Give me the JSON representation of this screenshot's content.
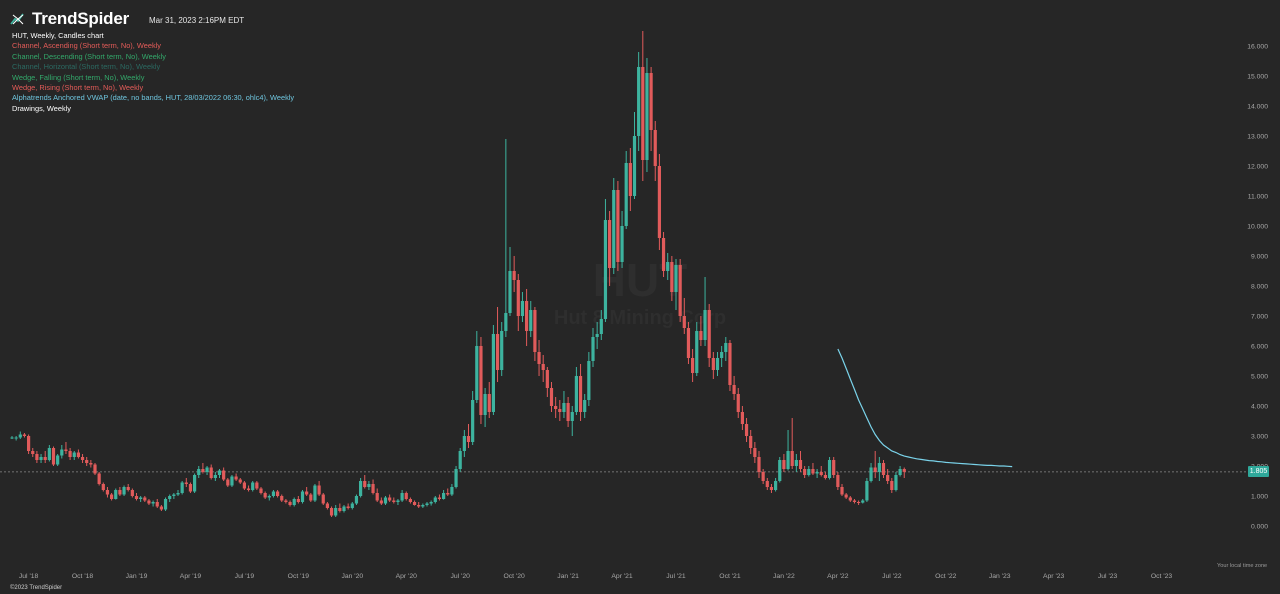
{
  "app": {
    "brand": "TrendSpider",
    "timestamp": "Mar 31, 2023 2:16PM EDT",
    "footer": "©2023 TrendSpider",
    "timezone_note": "Your local time zone"
  },
  "chart_title": "HUT, Weekly, Candles chart",
  "watermark": {
    "symbol": "HUT",
    "name": "Hut 8 Mining Corp"
  },
  "indicators": [
    {
      "label": "Channel, Ascending (Short term, No), Weekly",
      "color": "#e55c59"
    },
    {
      "label": "Channel, Descending (Short term, No), Weekly",
      "color": "#33a96b"
    },
    {
      "label": "Channel, Horizontal (Short term, No), Weekly",
      "color": "#2b6a62"
    },
    {
      "label": "Wedge, Falling (Short term, No), Weekly",
      "color": "#33a96b"
    },
    {
      "label": "Wedge, Rising (Short term, No), Weekly",
      "color": "#e55c59"
    },
    {
      "label": "Alphatrends Anchored VWAP (date, no bands, HUT, 28/03/2022 06:30, ohlc4), Weekly",
      "color": "#6fc6df"
    },
    {
      "label": "Drawings, Weekly",
      "color": "#ffffff"
    }
  ],
  "current_price": "1.805",
  "colors": {
    "up": "#3db39f",
    "down": "#e15b5b",
    "vwap": "#7ad3ea",
    "background": "#262626"
  },
  "chart_data": {
    "type": "candlestick",
    "symbol": "HUT",
    "timeframe": "Weekly",
    "y_axis": {
      "ticks": [
        "0.000",
        "1.000",
        "2.000",
        "3.000",
        "4.000",
        "5.000",
        "6.000",
        "7.000",
        "8.000",
        "9.000",
        "10.000",
        "11.000",
        "12.000",
        "13.000",
        "14.000",
        "15.000",
        "16.000"
      ],
      "min": 0,
      "max": 16
    },
    "x_axis": {
      "ticks": [
        "Jul '18",
        "Oct '18",
        "Jan '19",
        "Apr '19",
        "Jul '19",
        "Oct '19",
        "Jan '20",
        "Apr '20",
        "Jul '20",
        "Oct '20",
        "Jan '21",
        "Apr '21",
        "Jul '21",
        "Oct '21",
        "Jan '22",
        "Apr '22",
        "Jul '22",
        "Oct '22",
        "Jan '23",
        "Apr '23",
        "Jul '23",
        "Oct '23"
      ]
    },
    "start_date": "2018-06-04",
    "candles_ohlc": [
      [
        2.95,
        3.0,
        2.9,
        2.95
      ],
      [
        2.95,
        3.0,
        2.85,
        2.95
      ],
      [
        2.95,
        3.15,
        2.9,
        3.05
      ],
      [
        3.05,
        3.1,
        2.95,
        3.0
      ],
      [
        3.0,
        3.05,
        2.4,
        2.5
      ],
      [
        2.5,
        2.6,
        2.3,
        2.4
      ],
      [
        2.4,
        2.5,
        2.1,
        2.2
      ],
      [
        2.2,
        2.4,
        2.1,
        2.3
      ],
      [
        2.3,
        2.5,
        2.1,
        2.2
      ],
      [
        2.2,
        2.7,
        2.15,
        2.6
      ],
      [
        2.6,
        2.65,
        2.0,
        2.05
      ],
      [
        2.05,
        2.4,
        2.0,
        2.35
      ],
      [
        2.35,
        2.7,
        2.25,
        2.55
      ],
      [
        2.55,
        2.8,
        2.4,
        2.5
      ],
      [
        2.5,
        2.6,
        2.2,
        2.3
      ],
      [
        2.3,
        2.5,
        2.2,
        2.45
      ],
      [
        2.45,
        2.55,
        2.25,
        2.3
      ],
      [
        2.3,
        2.4,
        2.1,
        2.2
      ],
      [
        2.2,
        2.3,
        2.0,
        2.1
      ],
      [
        2.1,
        2.2,
        1.95,
        2.05
      ],
      [
        2.05,
        2.1,
        1.7,
        1.75
      ],
      [
        1.75,
        1.8,
        1.35,
        1.4
      ],
      [
        1.4,
        1.45,
        1.15,
        1.2
      ],
      [
        1.2,
        1.3,
        0.95,
        1.05
      ],
      [
        1.05,
        1.1,
        0.85,
        0.9
      ],
      [
        0.9,
        1.25,
        0.88,
        1.2
      ],
      [
        1.2,
        1.3,
        1.0,
        1.05
      ],
      [
        1.05,
        1.35,
        1.0,
        1.3
      ],
      [
        1.3,
        1.4,
        1.15,
        1.2
      ],
      [
        1.2,
        1.25,
        0.95,
        1.0
      ],
      [
        1.0,
        1.1,
        0.85,
        0.9
      ],
      [
        0.9,
        1.0,
        0.8,
        0.95
      ],
      [
        0.95,
        1.0,
        0.8,
        0.85
      ],
      [
        0.85,
        0.9,
        0.7,
        0.75
      ],
      [
        0.75,
        0.85,
        0.65,
        0.8
      ],
      [
        0.8,
        0.9,
        0.6,
        0.65
      ],
      [
        0.65,
        0.7,
        0.5,
        0.55
      ],
      [
        0.55,
        0.95,
        0.5,
        0.9
      ],
      [
        0.9,
        1.05,
        0.8,
        1.0
      ],
      [
        1.0,
        1.1,
        0.9,
        1.05
      ],
      [
        1.05,
        1.2,
        1.0,
        1.1
      ],
      [
        1.1,
        1.5,
        1.05,
        1.45
      ],
      [
        1.45,
        1.6,
        1.3,
        1.4
      ],
      [
        1.4,
        1.45,
        1.1,
        1.15
      ],
      [
        1.15,
        1.75,
        1.1,
        1.7
      ],
      [
        1.7,
        2.0,
        1.6,
        1.9
      ],
      [
        1.9,
        2.1,
        1.75,
        1.8
      ],
      [
        1.8,
        2.0,
        1.7,
        1.95
      ],
      [
        1.95,
        2.05,
        1.55,
        1.6
      ],
      [
        1.6,
        1.8,
        1.5,
        1.7
      ],
      [
        1.7,
        1.9,
        1.6,
        1.85
      ],
      [
        1.85,
        1.95,
        1.5,
        1.55
      ],
      [
        1.55,
        1.6,
        1.3,
        1.35
      ],
      [
        1.35,
        1.7,
        1.3,
        1.65
      ],
      [
        1.65,
        1.75,
        1.5,
        1.55
      ],
      [
        1.55,
        1.6,
        1.4,
        1.45
      ],
      [
        1.45,
        1.5,
        1.2,
        1.25
      ],
      [
        1.25,
        1.35,
        1.15,
        1.2
      ],
      [
        1.2,
        1.5,
        1.15,
        1.45
      ],
      [
        1.45,
        1.5,
        1.2,
        1.25
      ],
      [
        1.25,
        1.3,
        1.05,
        1.1
      ],
      [
        1.1,
        1.15,
        0.9,
        0.95
      ],
      [
        0.95,
        1.05,
        0.85,
        1.0
      ],
      [
        1.0,
        1.2,
        0.95,
        1.15
      ],
      [
        1.15,
        1.2,
        0.95,
        1.0
      ],
      [
        1.0,
        1.05,
        0.8,
        0.85
      ],
      [
        0.85,
        0.9,
        0.75,
        0.8
      ],
      [
        0.8,
        0.85,
        0.65,
        0.7
      ],
      [
        0.7,
        0.95,
        0.65,
        0.9
      ],
      [
        0.9,
        1.0,
        0.75,
        0.8
      ],
      [
        0.8,
        1.2,
        0.75,
        1.15
      ],
      [
        1.15,
        1.3,
        1.0,
        1.05
      ],
      [
        1.05,
        1.1,
        0.8,
        0.85
      ],
      [
        0.85,
        1.4,
        0.8,
        1.35
      ],
      [
        1.35,
        1.5,
        1.0,
        1.05
      ],
      [
        1.05,
        1.1,
        0.7,
        0.75
      ],
      [
        0.75,
        0.8,
        0.55,
        0.6
      ],
      [
        0.6,
        0.65,
        0.3,
        0.35
      ],
      [
        0.35,
        0.7,
        0.3,
        0.6
      ],
      [
        0.6,
        0.75,
        0.45,
        0.5
      ],
      [
        0.5,
        0.7,
        0.45,
        0.65
      ],
      [
        0.65,
        0.75,
        0.55,
        0.6
      ],
      [
        0.6,
        0.8,
        0.55,
        0.75
      ],
      [
        0.75,
        1.05,
        0.7,
        1.0
      ],
      [
        1.0,
        1.6,
        0.95,
        1.5
      ],
      [
        1.5,
        1.7,
        1.25,
        1.3
      ],
      [
        1.3,
        1.5,
        1.2,
        1.4
      ],
      [
        1.4,
        1.55,
        1.05,
        1.1
      ],
      [
        1.1,
        1.25,
        0.8,
        0.85
      ],
      [
        0.85,
        0.95,
        0.7,
        0.75
      ],
      [
        0.75,
        1.0,
        0.7,
        0.95
      ],
      [
        0.95,
        1.05,
        0.8,
        0.85
      ],
      [
        0.85,
        0.95,
        0.75,
        0.8
      ],
      [
        0.8,
        0.9,
        0.7,
        0.85
      ],
      [
        0.85,
        1.2,
        0.8,
        1.1
      ],
      [
        1.1,
        1.15,
        0.85,
        0.9
      ],
      [
        0.9,
        0.95,
        0.75,
        0.8
      ],
      [
        0.8,
        0.85,
        0.68,
        0.7
      ],
      [
        0.7,
        0.8,
        0.6,
        0.65
      ],
      [
        0.65,
        0.75,
        0.6,
        0.7
      ],
      [
        0.7,
        0.8,
        0.65,
        0.75
      ],
      [
        0.75,
        0.85,
        0.68,
        0.8
      ],
      [
        0.8,
        1.0,
        0.75,
        0.95
      ],
      [
        0.95,
        1.05,
        0.85,
        0.9
      ],
      [
        0.9,
        1.2,
        0.88,
        1.1
      ],
      [
        1.1,
        1.25,
        1.0,
        1.05
      ],
      [
        1.05,
        1.4,
        1.0,
        1.3
      ],
      [
        1.3,
        2.0,
        1.25,
        1.9
      ],
      [
        1.9,
        2.6,
        1.8,
        2.5
      ],
      [
        2.5,
        3.2,
        2.3,
        3.0
      ],
      [
        3.0,
        3.4,
        2.6,
        2.8
      ],
      [
        2.8,
        4.5,
        2.7,
        4.2
      ],
      [
        4.2,
        6.5,
        4.1,
        6.0
      ],
      [
        6.0,
        6.3,
        3.4,
        3.7
      ],
      [
        3.7,
        4.6,
        3.3,
        4.4
      ],
      [
        4.4,
        4.8,
        3.6,
        3.8
      ],
      [
        3.8,
        6.7,
        3.7,
        6.4
      ],
      [
        6.4,
        7.3,
        4.8,
        5.2
      ],
      [
        5.2,
        6.8,
        5.0,
        6.5
      ],
      [
        6.5,
        12.9,
        6.3,
        7.1
      ],
      [
        7.1,
        9.3,
        7.0,
        8.5
      ],
      [
        8.5,
        9.0,
        7.8,
        8.2
      ],
      [
        8.2,
        8.4,
        6.5,
        7.0
      ],
      [
        7.0,
        7.8,
        6.8,
        7.5
      ],
      [
        7.5,
        7.9,
        6.0,
        6.5
      ],
      [
        6.5,
        7.5,
        6.3,
        7.2
      ],
      [
        7.2,
        7.3,
        5.5,
        5.8
      ],
      [
        5.8,
        6.2,
        5.0,
        5.4
      ],
      [
        5.4,
        5.7,
        4.8,
        5.2
      ],
      [
        5.2,
        5.3,
        4.3,
        4.6
      ],
      [
        4.6,
        4.8,
        3.8,
        4.0
      ],
      [
        4.0,
        4.3,
        3.6,
        3.9
      ],
      [
        3.9,
        4.2,
        3.5,
        3.8
      ],
      [
        3.8,
        4.5,
        3.6,
        4.1
      ],
      [
        4.1,
        4.3,
        3.3,
        3.5
      ],
      [
        3.5,
        4.0,
        3.0,
        3.8
      ],
      [
        3.8,
        5.3,
        3.7,
        5.0
      ],
      [
        5.0,
        5.4,
        3.5,
        3.8
      ],
      [
        3.8,
        4.4,
        3.6,
        4.2
      ],
      [
        4.2,
        5.8,
        4.0,
        5.5
      ],
      [
        5.5,
        6.6,
        5.3,
        6.3
      ],
      [
        6.3,
        6.8,
        5.9,
        6.4
      ],
      [
        6.4,
        7.2,
        6.2,
        6.9
      ],
      [
        6.9,
        10.9,
        6.8,
        10.2
      ],
      [
        10.2,
        10.5,
        8.0,
        8.6
      ],
      [
        8.6,
        11.6,
        8.4,
        11.2
      ],
      [
        11.2,
        11.5,
        8.5,
        8.8
      ],
      [
        8.8,
        10.5,
        8.6,
        10.0
      ],
      [
        10.0,
        12.5,
        9.9,
        12.1
      ],
      [
        12.1,
        12.6,
        10.5,
        11.0
      ],
      [
        11.0,
        13.8,
        10.9,
        13.0
      ],
      [
        13.0,
        15.8,
        12.5,
        15.3
      ],
      [
        15.3,
        16.5,
        11.5,
        12.2
      ],
      [
        12.2,
        15.6,
        11.8,
        15.1
      ],
      [
        15.1,
        15.3,
        12.5,
        13.2
      ],
      [
        13.2,
        13.5,
        11.5,
        12.0
      ],
      [
        12.0,
        12.4,
        9.2,
        9.6
      ],
      [
        9.6,
        9.8,
        8.3,
        8.5
      ],
      [
        8.5,
        9.1,
        8.2,
        8.8
      ],
      [
        8.8,
        9.0,
        7.5,
        7.8
      ],
      [
        7.8,
        8.9,
        7.2,
        8.7
      ],
      [
        8.7,
        8.9,
        6.8,
        7.0
      ],
      [
        7.0,
        7.6,
        6.4,
        6.6
      ],
      [
        6.6,
        6.8,
        5.4,
        5.6
      ],
      [
        5.6,
        5.9,
        4.8,
        5.1
      ],
      [
        5.1,
        6.8,
        5.0,
        6.5
      ],
      [
        6.5,
        7.0,
        6.0,
        6.2
      ],
      [
        6.2,
        8.3,
        6.0,
        7.2
      ],
      [
        7.2,
        7.4,
        5.3,
        5.6
      ],
      [
        5.6,
        5.8,
        4.9,
        5.2
      ],
      [
        5.2,
        5.8,
        5.0,
        5.6
      ],
      [
        5.6,
        6.0,
        5.3,
        5.8
      ],
      [
        5.8,
        6.3,
        5.5,
        6.1
      ],
      [
        6.1,
        6.2,
        4.5,
        4.7
      ],
      [
        4.7,
        5.0,
        4.2,
        4.4
      ],
      [
        4.4,
        4.6,
        3.6,
        3.8
      ],
      [
        3.8,
        4.0,
        3.2,
        3.4
      ],
      [
        3.4,
        3.6,
        2.8,
        3.0
      ],
      [
        3.0,
        3.2,
        2.4,
        2.6
      ],
      [
        2.6,
        2.8,
        2.1,
        2.3
      ],
      [
        2.3,
        2.5,
        1.6,
        1.8
      ],
      [
        1.8,
        1.9,
        1.4,
        1.5
      ],
      [
        1.5,
        1.6,
        1.2,
        1.3
      ],
      [
        1.3,
        1.4,
        1.1,
        1.2
      ],
      [
        1.2,
        1.6,
        1.15,
        1.5
      ],
      [
        1.5,
        2.3,
        1.45,
        2.2
      ],
      [
        2.2,
        2.4,
        1.8,
        1.9
      ],
      [
        1.9,
        3.2,
        1.85,
        2.5
      ],
      [
        2.5,
        3.6,
        1.9,
        2.0
      ],
      [
        2.0,
        2.4,
        1.8,
        2.2
      ],
      [
        2.2,
        2.5,
        1.8,
        1.9
      ],
      [
        1.9,
        2.0,
        1.6,
        1.7
      ],
      [
        1.7,
        2.0,
        1.65,
        1.9
      ],
      [
        1.9,
        2.1,
        1.7,
        1.75
      ],
      [
        1.75,
        1.9,
        1.6,
        1.8
      ],
      [
        1.8,
        2.0,
        1.65,
        1.7
      ],
      [
        1.7,
        1.8,
        1.55,
        1.6
      ],
      [
        1.6,
        2.3,
        1.55,
        2.2
      ],
      [
        2.2,
        2.3,
        1.6,
        1.7
      ],
      [
        1.7,
        1.8,
        1.2,
        1.3
      ],
      [
        1.3,
        1.4,
        1.0,
        1.05
      ],
      [
        1.05,
        1.1,
        0.9,
        0.95
      ],
      [
        0.95,
        1.0,
        0.8,
        0.85
      ],
      [
        0.85,
        0.9,
        0.75,
        0.8
      ],
      [
        0.8,
        0.85,
        0.7,
        0.78
      ],
      [
        0.78,
        0.9,
        0.75,
        0.85
      ],
      [
        0.85,
        1.6,
        0.8,
        1.5
      ],
      [
        1.5,
        2.1,
        1.45,
        1.95
      ],
      [
        1.95,
        2.5,
        1.6,
        1.8
      ],
      [
        1.8,
        2.3,
        1.5,
        2.1
      ],
      [
        2.1,
        2.2,
        1.6,
        1.7
      ],
      [
        1.7,
        1.9,
        1.4,
        1.5
      ],
      [
        1.5,
        1.6,
        1.1,
        1.2
      ],
      [
        1.2,
        1.8,
        1.15,
        1.7
      ],
      [
        1.7,
        2.0,
        1.65,
        1.9
      ],
      [
        1.9,
        1.95,
        1.6,
        1.805
      ]
    ],
    "vwap_anchor_index": 199,
    "vwap_values": [
      5.9,
      5.6,
      5.25,
      4.9,
      4.55,
      4.2,
      3.9,
      3.6,
      3.3,
      3.05,
      2.85,
      2.7,
      2.6,
      2.5,
      2.45,
      2.38,
      2.33,
      2.3,
      2.27,
      2.24,
      2.22,
      2.2,
      2.18,
      2.17,
      2.15,
      2.14,
      2.12,
      2.11,
      2.1,
      2.09,
      2.08,
      2.07,
      2.06,
      2.05,
      2.04,
      2.03,
      2.02,
      2.02,
      2.01,
      2.0,
      2.0,
      1.99,
      1.98
    ]
  }
}
